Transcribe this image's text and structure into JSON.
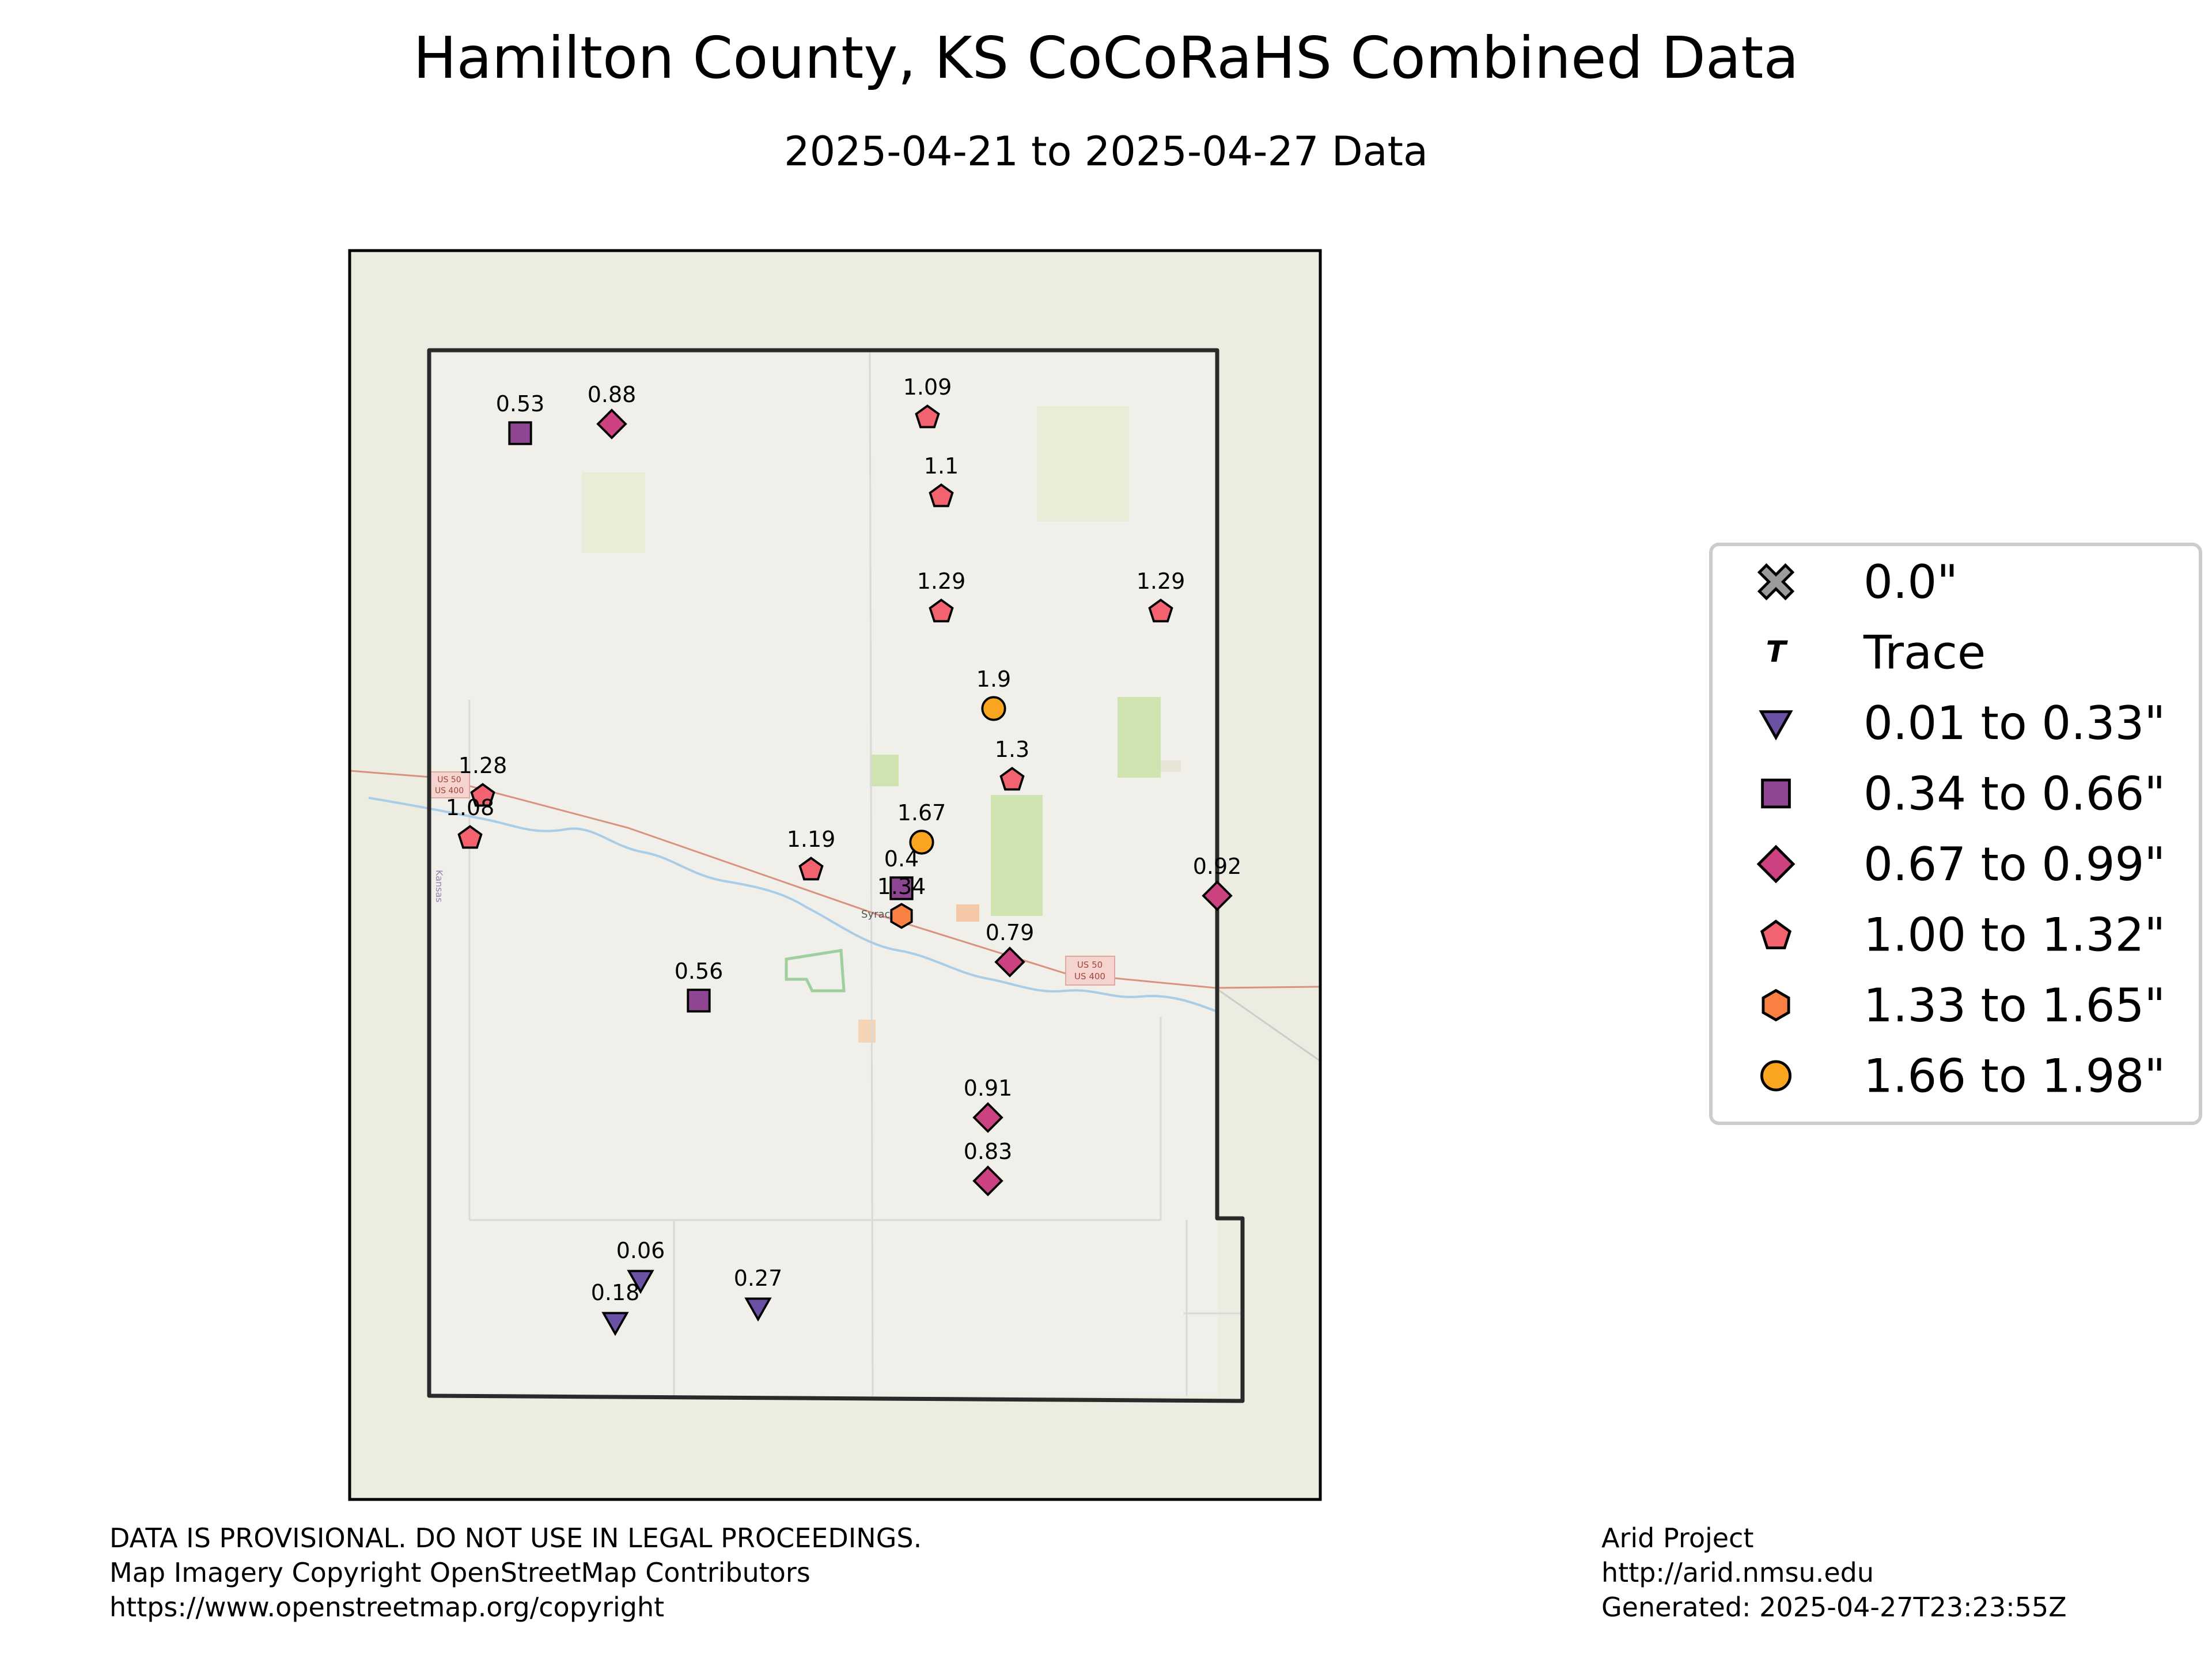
{
  "title": "Hamilton County, KS CoCoRaHS Combined Data",
  "subtitle": "2025-04-21 to 2025-04-27 Data",
  "colors": {
    "class_1": "#6a51a3",
    "class_2": "#8e4592",
    "class_3": "#cc4280",
    "class_4": "#f3636f",
    "class_5": "#f98043",
    "class_6": "#f9a51f",
    "zero": "#9b9b9b",
    "county_border": "#222222",
    "basemap": "#f0efe9"
  },
  "map": {
    "town_label": "Syracuse",
    "state_label": "Kansas",
    "road_shield_west": [
      "US 50",
      "US 400"
    ],
    "road_shield_east": [
      "US 50",
      "US 400"
    ],
    "stations": [
      {
        "label": "0.53",
        "category": "class_2",
        "marker": "square"
      },
      {
        "label": "0.88",
        "category": "class_3",
        "marker": "diamond"
      },
      {
        "label": "1.09",
        "category": "class_4",
        "marker": "pentagon"
      },
      {
        "label": "1.1",
        "category": "class_4",
        "marker": "pentagon"
      },
      {
        "label": "1.29",
        "category": "class_4",
        "marker": "pentagon"
      },
      {
        "label": "1.29",
        "category": "class_4",
        "marker": "pentagon"
      },
      {
        "label": "1.9",
        "category": "class_6",
        "marker": "circle"
      },
      {
        "label": "1.3",
        "category": "class_4",
        "marker": "pentagon"
      },
      {
        "label": "1.28",
        "category": "class_4",
        "marker": "pentagon"
      },
      {
        "label": "1.08",
        "category": "class_4",
        "marker": "pentagon"
      },
      {
        "label": "1.19",
        "category": "class_4",
        "marker": "pentagon"
      },
      {
        "label": "1.67",
        "category": "class_6",
        "marker": "circle"
      },
      {
        "label": "0.4",
        "category": "class_2",
        "marker": "square"
      },
      {
        "label": "1.34",
        "category": "class_5",
        "marker": "hexagon"
      },
      {
        "label": "0.92",
        "category": "class_3",
        "marker": "diamond"
      },
      {
        "label": "0.79",
        "category": "class_3",
        "marker": "diamond"
      },
      {
        "label": "0.56",
        "category": "class_2",
        "marker": "square"
      },
      {
        "label": "0.91",
        "category": "class_3",
        "marker": "diamond"
      },
      {
        "label": "0.83",
        "category": "class_3",
        "marker": "diamond"
      },
      {
        "label": "0.06",
        "category": "class_1",
        "marker": "triangle"
      },
      {
        "label": "0.18",
        "category": "class_1",
        "marker": "triangle"
      },
      {
        "label": "0.27",
        "category": "class_1",
        "marker": "triangle"
      }
    ]
  },
  "legend": [
    {
      "label": "0.0\"",
      "category": "zero",
      "marker": "x"
    },
    {
      "label": "Trace",
      "category": "trace",
      "marker": "T"
    },
    {
      "label": "0.01 to 0.33\"",
      "category": "class_1",
      "marker": "triangle"
    },
    {
      "label": "0.34 to 0.66\"",
      "category": "class_2",
      "marker": "square"
    },
    {
      "label": "0.67 to 0.99\"",
      "category": "class_3",
      "marker": "diamond"
    },
    {
      "label": "1.00 to 1.32\"",
      "category": "class_4",
      "marker": "pentagon"
    },
    {
      "label": "1.33 to 1.65\"",
      "category": "class_5",
      "marker": "hexagon"
    },
    {
      "label": "1.66 to 1.98\"",
      "category": "class_6",
      "marker": "circle"
    }
  ],
  "footer_left": [
    "DATA IS PROVISIONAL. DO NOT USE IN LEGAL PROCEEDINGS.",
    "Map Imagery Copyright OpenStreetMap Contributors",
    "https://www.openstreetmap.org/copyright"
  ],
  "footer_right": [
    "Arid Project",
    "http://arid.nmsu.edu",
    "Generated: 2025-04-27T23:23:55Z"
  ]
}
